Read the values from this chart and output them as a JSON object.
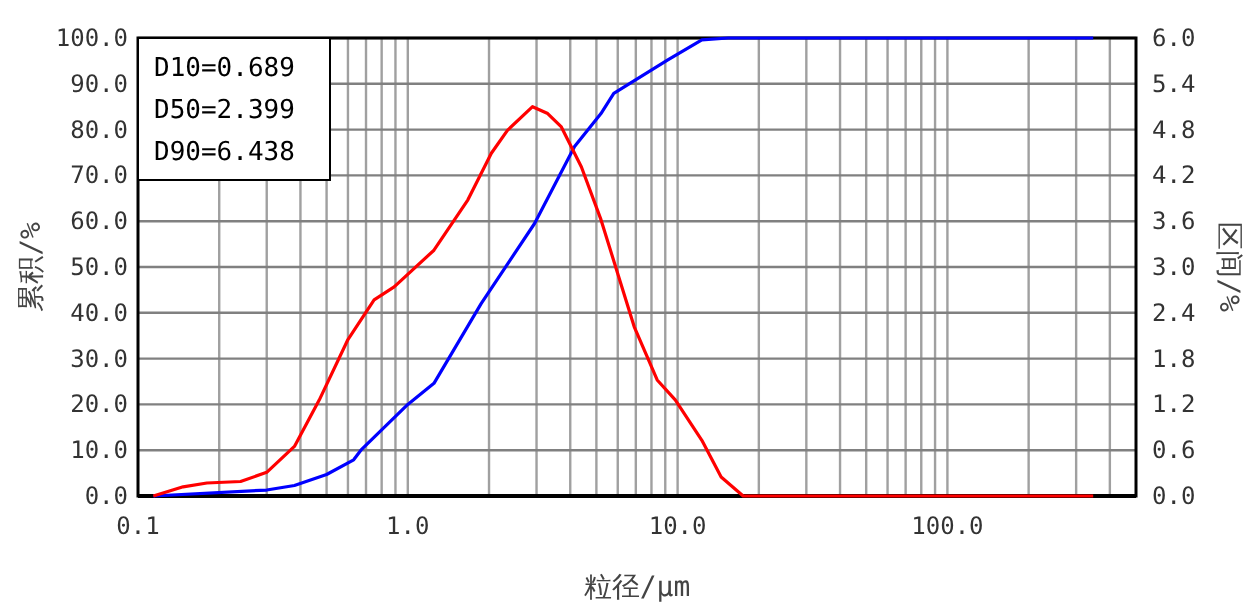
{
  "chart_data": {
    "type": "line",
    "xlabel": "粒径/μm",
    "ylabel": "累积/%",
    "y2label": "区间/%",
    "log": "x",
    "grid": true,
    "line_style": "solid",
    "annotations": [
      "D10=0.689",
      "D50=2.399",
      "D90=6.438"
    ],
    "xlim": [
      0.1,
      500
    ],
    "xticks": [
      {
        "value": 0.1,
        "label": "0.1"
      },
      {
        "value": 1,
        "label": "1.0"
      },
      {
        "value": 10,
        "label": "10.0"
      },
      {
        "value": 100,
        "label": "100.0"
      }
    ],
    "ylim": [
      0,
      100
    ],
    "yticks": [
      {
        "value": 0,
        "label": "0.0"
      },
      {
        "value": 10,
        "label": "10.0"
      },
      {
        "value": 20,
        "label": "20.0"
      },
      {
        "value": 30,
        "label": "30.0"
      },
      {
        "value": 40,
        "label": "40.0"
      },
      {
        "value": 50,
        "label": "50.0"
      },
      {
        "value": 60,
        "label": "60.0"
      },
      {
        "value": 70,
        "label": "70.0"
      },
      {
        "value": 80,
        "label": "80.0"
      },
      {
        "value": 90,
        "label": "90.0"
      },
      {
        "value": 100,
        "label": "100.0"
      }
    ],
    "y2lim": [
      0,
      6
    ],
    "y2ticks": [
      {
        "value": 0,
        "label": "0.0"
      },
      {
        "value": 0.6,
        "label": "0.6"
      },
      {
        "value": 1.2,
        "label": "1.2"
      },
      {
        "value": 1.8,
        "label": "1.8"
      },
      {
        "value": 2.4,
        "label": "2.4"
      },
      {
        "value": 3,
        "label": "3.0"
      },
      {
        "value": 3.6,
        "label": "3.6"
      },
      {
        "value": 4.2,
        "label": "4.2"
      },
      {
        "value": 4.8,
        "label": "4.8"
      },
      {
        "value": 5.4,
        "label": "5.4"
      },
      {
        "value": 6,
        "label": "6.0"
      }
    ],
    "series": [
      {
        "color": "#0000ff",
        "x": [
          0.114,
          0.3,
          0.38,
          0.5,
          0.63,
          0.67,
          1.0,
          1.25,
          1.87,
          2.95,
          4.15,
          5.2,
          5.8,
          9.2,
          12.3,
          15.4,
          347
        ],
        "values": [
          0,
          1.3,
          2.3,
          4.7,
          7.9,
          10,
          20,
          24.6,
          42,
          59.5,
          76.3,
          83.5,
          87.9,
          95.2,
          99.6,
          100,
          100
        ]
      },
      {
        "color": "#ff0000",
        "axis": "y2",
        "x": [
          0.114,
          0.147,
          0.18,
          0.24,
          0.3,
          0.38,
          0.47,
          0.6,
          0.75,
          0.89,
          1.25,
          1.67,
          2.04,
          2.34,
          2.9,
          3.3,
          3.7,
          4.4,
          5.2,
          6.9,
          8.4,
          9.8,
          12.3,
          14.5,
          17.5,
          347
        ],
        "values": [
          0,
          0.12,
          0.17,
          0.19,
          0.31,
          0.65,
          1.26,
          2.05,
          2.57,
          2.74,
          3.22,
          3.88,
          4.49,
          4.79,
          5.1,
          5.01,
          4.84,
          4.31,
          3.62,
          2.22,
          1.52,
          1.26,
          0.73,
          0.25,
          0,
          0
        ]
      }
    ]
  }
}
